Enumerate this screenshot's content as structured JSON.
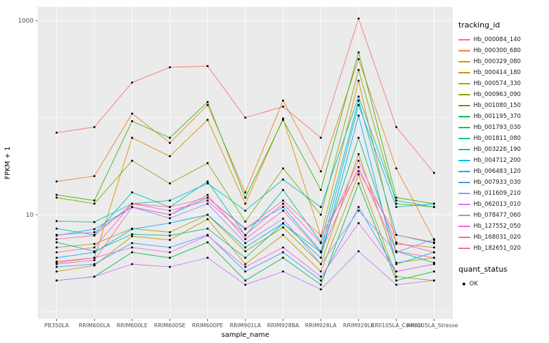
{
  "panel": {
    "bg_color": "#EBEBEB",
    "grid_color": "#FFFFFF",
    "tick_color": "#333333",
    "tick_label_color": "#4D4D4D",
    "point_color": "#000000"
  },
  "chart_data": {
    "type": "line",
    "title": "",
    "xlabel": "sample_name",
    "ylabel": "FPKM + 1",
    "y_scale": "log10",
    "ylim": [
      0.85,
      1100
    ],
    "y_ticks": [
      1000,
      10
    ],
    "y_minor": [
      100,
      1
    ],
    "grid": true,
    "legend_position": "right",
    "categories": [
      "PB350LA",
      "RRIM600LA",
      "RRIM600LE",
      "RRIM600SE",
      "RRIM600PE",
      "RRIM901LA",
      "RRIM928BA",
      "RRIM928LA",
      "RRIM928LE",
      "RRII105LA_Control",
      "RRII105LA_Stressed"
    ],
    "series": [
      {
        "name": "Hb_000084_140",
        "color": "#F8766D",
        "values": [
          70,
          80,
          230,
          330,
          340,
          100,
          130,
          62,
          1050,
          80,
          27
        ]
      },
      {
        "name": "Hb_000300_680",
        "color": "#EA8331",
        "values": [
          22,
          25,
          110,
          55,
          135,
          17,
          150,
          28,
          400,
          30,
          5.5
        ]
      },
      {
        "name": "Hb_000329_080",
        "color": "#D89000",
        "values": [
          3.2,
          3.6,
          62,
          40,
          95,
          13,
          98,
          6,
          240,
          5,
          4.6
        ]
      },
      {
        "name": "Hb_000414_180",
        "color": "#C09B00",
        "values": [
          2.6,
          3,
          6,
          5.5,
          9,
          3.1,
          6.2,
          2.6,
          26,
          2.3,
          2.1
        ]
      },
      {
        "name": "Hb_000574_330",
        "color": "#A3A500",
        "values": [
          4.6,
          5,
          7.2,
          6.6,
          10,
          4.2,
          7.4,
          3.1,
          42,
          3.2,
          3.6
        ]
      },
      {
        "name": "Hb_000963_090",
        "color": "#7CAE00",
        "values": [
          15,
          13,
          36,
          21,
          34,
          8.5,
          30,
          10,
          310,
          13,
          12
        ]
      },
      {
        "name": "Hb_001080_150",
        "color": "#39B600",
        "values": [
          16,
          14,
          92,
          62,
          145,
          15,
          95,
          18,
          470,
          15,
          13
        ]
      },
      {
        "name": "Hb_001195_370",
        "color": "#00BB4E",
        "values": [
          2.1,
          2.3,
          4.1,
          3.6,
          5.2,
          2.1,
          3.6,
          1.9,
          21,
          2.1,
          2.6
        ]
      },
      {
        "name": "Hb_001793_030",
        "color": "#00BF7D",
        "values": [
          5.2,
          4.2,
          6.3,
          6.1,
          7.2,
          3.6,
          8.1,
          4.1,
          62,
          4.2,
          3.2
        ]
      },
      {
        "name": "Hb_001811_080",
        "color": "#00C1A3",
        "values": [
          7.2,
          6.2,
          17,
          12,
          22,
          6.1,
          18,
          5.2,
          150,
          6.2,
          5.1
        ]
      },
      {
        "name": "Hb_003226_190",
        "color": "#00BFC4",
        "values": [
          8.6,
          8.4,
          13,
          14,
          21,
          11,
          23,
          12,
          165,
          14,
          12
        ]
      },
      {
        "name": "Hb_004712_200",
        "color": "#00BAE0",
        "values": [
          6.1,
          7.1,
          12,
          10,
          15,
          7.2,
          12,
          4.2,
          135,
          12,
          13
        ]
      },
      {
        "name": "Hb_006483_120",
        "color": "#00B0F6",
        "values": [
          3.6,
          4.1,
          7.1,
          8.2,
          10,
          4.6,
          8.2,
          3.6,
          105,
          3.1,
          4.1
        ]
      },
      {
        "name": "Hb_007933_030",
        "color": "#35A2FF",
        "values": [
          2.9,
          3.1,
          5.1,
          4.6,
          6.2,
          2.6,
          4.1,
          2.1,
          12,
          2.6,
          3.1
        ]
      },
      {
        "name": "Hb_011609_210",
        "color": "#9590FF",
        "values": [
          6.2,
          6.6,
          12,
          9.2,
          13,
          5.1,
          9.1,
          3.1,
          11,
          4.1,
          5.6
        ]
      },
      {
        "name": "Hb_062013_010",
        "color": "#C77CFF",
        "values": [
          2.1,
          2.3,
          3.1,
          2.9,
          3.6,
          1.9,
          2.6,
          1.7,
          4.2,
          1.9,
          2.1
        ]
      },
      {
        "name": "Hb_078477_060",
        "color": "#E76BF3",
        "values": [
          3.3,
          3.6,
          4.6,
          4.1,
          6.1,
          2.9,
          4.6,
          2.3,
          8.2,
          2.6,
          3.1
        ]
      },
      {
        "name": "Hb_127552_050",
        "color": "#FA62DB",
        "values": [
          4.1,
          4.6,
          13,
          11,
          14,
          6.2,
          13,
          5.1,
          36,
          5.2,
          4.1
        ]
      },
      {
        "name": "Hb_168031_020",
        "color": "#FF62BC",
        "values": [
          3.1,
          3.4,
          12,
          10,
          16,
          5.6,
          11,
          4.1,
          31,
          4.2,
          3.6
        ]
      },
      {
        "name": "Hb_182651_020",
        "color": "#FF6A98",
        "values": [
          5.6,
          6.1,
          13,
          12,
          15,
          7.1,
          14,
          6.1,
          28,
          6.2,
          5.2
        ]
      }
    ],
    "legend": {
      "tracking_title": "tracking_id",
      "quant_title": "quant_status",
      "quant_label": "OK"
    }
  }
}
